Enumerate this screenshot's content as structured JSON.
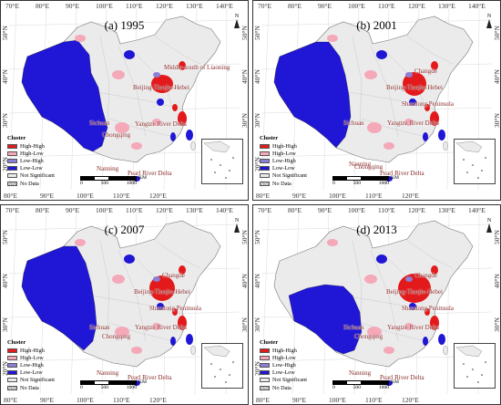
{
  "colors": {
    "high_high": "#e31a1c",
    "high_low": "#f4a8b8",
    "low_high": "#8b7fd6",
    "low_low": "#1f16d6",
    "not_significant": "#ebebeb",
    "no_data": "hatched"
  },
  "lon_labels": [
    "70°E",
    "80°E",
    "90°E",
    "100°E",
    "110°E",
    "120°E",
    "130°E",
    "140°E"
  ],
  "lat_labels": [
    "50°N",
    "40°N",
    "30°N",
    "20°N"
  ],
  "bottom_lon_labels": [
    "80°E",
    "90°E",
    "100°E",
    "110°E",
    "120°E"
  ],
  "north_label": "N",
  "legend": {
    "title": "Cluster",
    "items": [
      "High-High",
      "High-Low",
      "Low-High",
      "Low-Low",
      "Not Significant",
      "No Data"
    ]
  },
  "scale": {
    "unit": "KM",
    "ticks": [
      "0",
      "500",
      "1000"
    ]
  },
  "panels": [
    {
      "title": "(a) 1995",
      "places": [
        "Middle-south of Liaoning",
        "Beijing-Tianjin-Hebei",
        "Sichuan",
        "Chongqing",
        "Yangtze River Delta",
        "Nanning",
        "Pearl River Delta"
      ]
    },
    {
      "title": "(b) 2001",
      "places": [
        "Changde",
        "Beijing-Tianjin-Hebei",
        "Shandong Peninsula",
        "Sichuan",
        "Yangtze River Delta",
        "Chongqing",
        "Nanning",
        "Pearl River Delta"
      ]
    },
    {
      "title": "(c) 2007",
      "places": [
        "Changde",
        "Beijing-Tianjin-Hebei",
        "Shandong Peninsula",
        "Sichuan",
        "Yangtze River Delta",
        "Chongqing",
        "Nanning",
        "Pearl River Delta"
      ]
    },
    {
      "title": "(d) 2013",
      "places": [
        "Changde",
        "Beijing-Tianjin-Hebei",
        "Shandong Peninsula",
        "Sichuan",
        "Yangtze River Delta",
        "Chongqing",
        "Nanning",
        "Pearl River Delta"
      ]
    }
  ]
}
